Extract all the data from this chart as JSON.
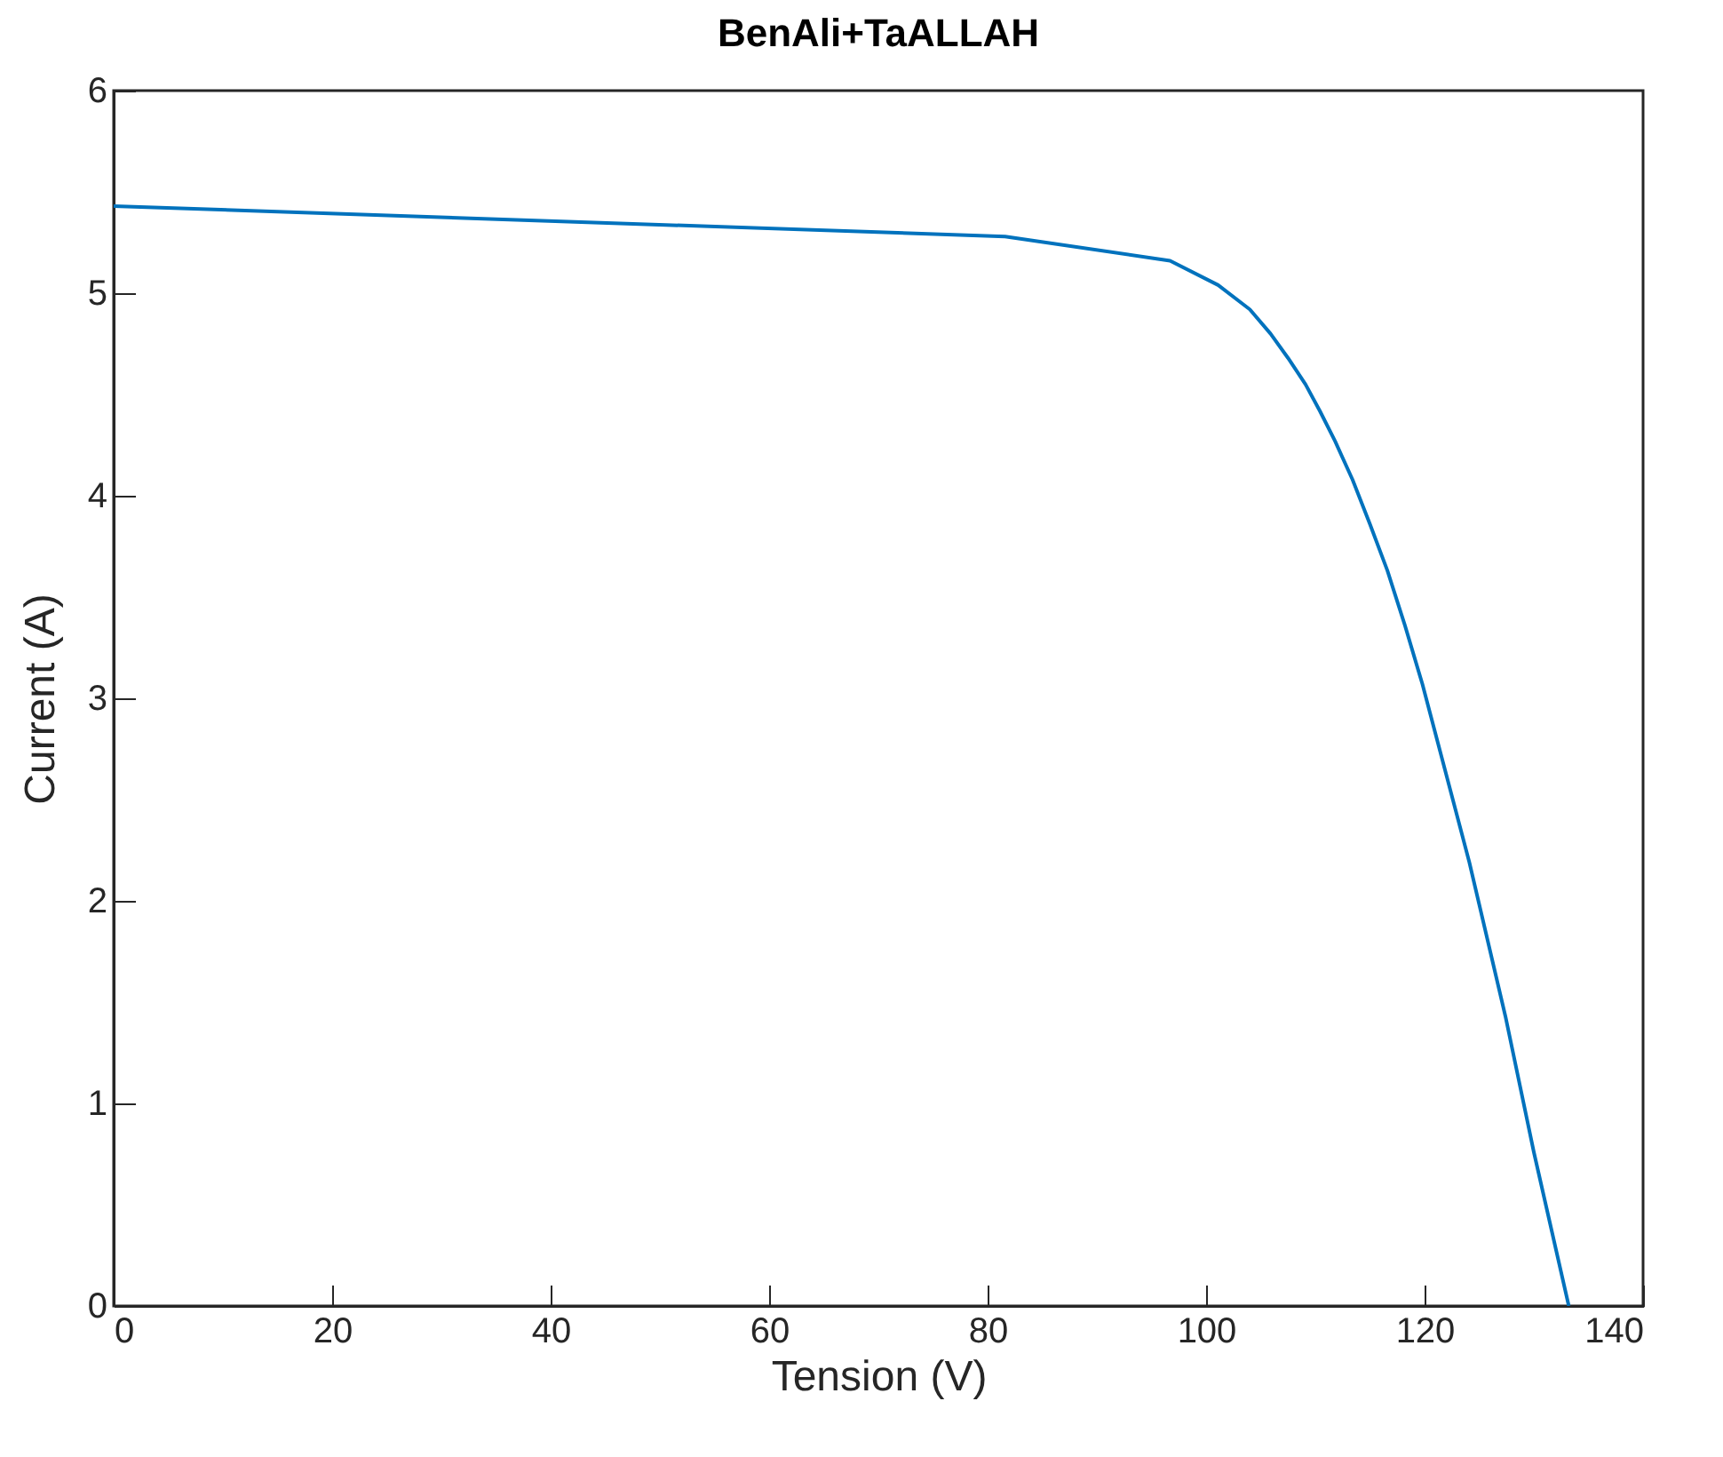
{
  "chart_data": {
    "type": "line",
    "title": "BenAli+TaALLAH",
    "xlabel": "Tension (V)",
    "ylabel": "Current (A)",
    "x": [
      0,
      81.6,
      96.7,
      101.1,
      104.0,
      105.9,
      107.5,
      109.1,
      110.4,
      111.8,
      113.4,
      115.0,
      116.6,
      118.2,
      119.8,
      124.1,
      127.4,
      130.0,
      133.2
    ],
    "series": [
      {
        "color": "#0072bd",
        "values": [
          5.43,
          5.28,
          5.16,
          5.04,
          4.92,
          4.8,
          4.68,
          4.55,
          4.42,
          4.27,
          4.08,
          3.86,
          3.63,
          3.36,
          3.07,
          2.19,
          1.43,
          0.76,
          0
        ]
      }
    ],
    "xlim": [
      0,
      140
    ],
    "xticks": [
      0,
      20,
      40,
      60,
      80,
      100,
      120,
      140
    ],
    "ylim": [
      0,
      6
    ],
    "yticks": [
      0,
      1,
      2,
      3,
      4,
      5,
      6
    ],
    "grid": false,
    "legend": false,
    "marker": "none",
    "line_style": "solid"
  }
}
